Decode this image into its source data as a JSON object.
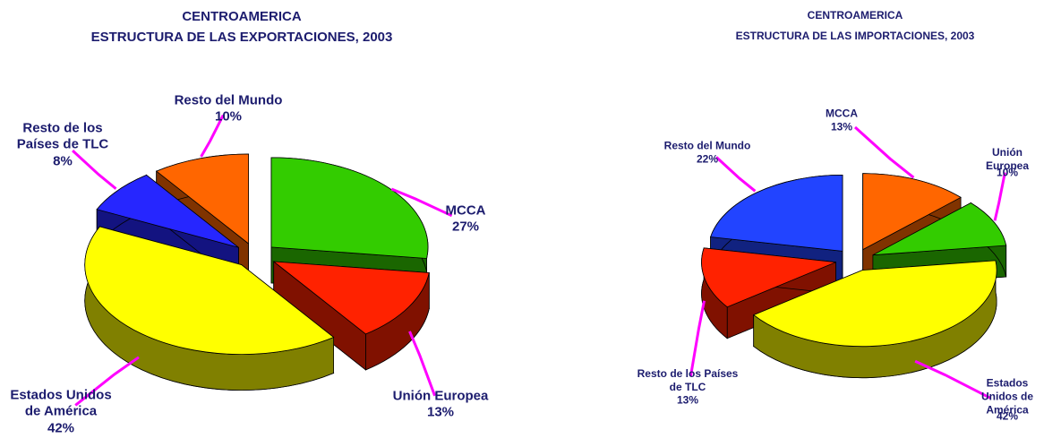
{
  "chart_data": [
    {
      "type": "pie3d",
      "title": "CENTROAMERICA",
      "subtitle": "ESTRUCTURA DE LAS EXPORTACIONES, 2003",
      "categories": [
        "MCCA",
        "Unión Europea",
        "Estados Unidos\nde América",
        "Resto de los\nPaíses de TLC",
        "Resto del Mundo"
      ],
      "values": [
        27,
        13,
        42,
        8,
        10
      ],
      "value_labels": [
        "27%",
        "13%",
        "42%",
        "8%",
        "10%"
      ],
      "colors": [
        "#33cc00",
        "#ff2200",
        "#ffff00",
        "#2626ff",
        "#ff6600"
      ]
    },
    {
      "type": "pie3d",
      "title": "CENTROAMERICA",
      "subtitle": "ESTRUCTURA DE LAS IMPORTACIONES, 2003",
      "categories": [
        "MCCA",
        "Unión Europea",
        "Estados Unidos de\nAmérica",
        "Resto de los Países\nde TLC",
        "Resto del Mundo"
      ],
      "values": [
        13,
        10,
        42,
        13,
        22
      ],
      "value_labels": [
        "13%",
        "10%",
        "42%",
        "13%",
        "22%"
      ],
      "colors": [
        "#ff6600",
        "#33cc00",
        "#ffff00",
        "#ff2200",
        "#2244ff"
      ]
    }
  ]
}
